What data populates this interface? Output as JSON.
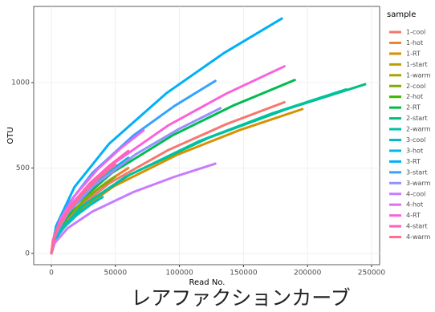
{
  "chart_data": {
    "type": "line",
    "x_label": "Read No.",
    "y_label": "OTU",
    "legend_title": "sample",
    "caption": "レアファクションカーブ",
    "xlim": [
      -13800,
      256300
    ],
    "ylim": [
      -66,
      1446
    ],
    "xticks": [
      0,
      50000,
      100000,
      150000,
      200000,
      250000
    ],
    "yticks": [
      0,
      500,
      1000
    ],
    "grid": true,
    "legend": "right",
    "series": [
      {
        "name": "1-cool",
        "color": "#F8766D",
        "x": [
          0,
          3640,
          18200,
          45500,
          91000,
          136500,
          182000
        ],
        "values": [
          0,
          103,
          250,
          412,
          604,
          756,
          885
        ]
      },
      {
        "name": "1-hot",
        "color": "#EA8331",
        "x": [
          0,
          1200,
          6000,
          15000,
          30000,
          45000,
          60000
        ],
        "values": [
          0,
          58,
          141,
          233,
          342,
          427,
          500
        ]
      },
      {
        "name": "1-RT",
        "color": "#D89000",
        "x": [
          0,
          3920,
          19600,
          49000,
          98000,
          147000,
          196000
        ],
        "values": [
          0,
          98,
          238,
          394,
          577,
          722,
          845
        ]
      },
      {
        "name": "1-start",
        "color": "#C09B00",
        "x": [
          0,
          900,
          4500,
          11250,
          22500,
          33750,
          45000
        ],
        "values": [
          0,
          44,
          107,
          177,
          260,
          325,
          380
        ]
      },
      {
        "name": "1-warm",
        "color": "#A3A500",
        "x": [
          0,
          700,
          3500,
          8750,
          17500,
          26250,
          35000
        ],
        "values": [
          0,
          37,
          90,
          149,
          219,
          273,
          320
        ]
      },
      {
        "name": "2-cool",
        "color": "#7CAE00",
        "x": [
          0,
          1000,
          5000,
          12500,
          25000,
          37500,
          50000
        ],
        "values": [
          0,
          52,
          127,
          210,
          307,
          384,
          450
        ]
      },
      {
        "name": "2-hot",
        "color": "#39B600",
        "x": [
          0,
          1100,
          5500,
          13750,
          27500,
          41250,
          55000
        ],
        "values": [
          0,
          60,
          147,
          242,
          355,
          444,
          520
        ]
      },
      {
        "name": "2-RT",
        "color": "#00BB4E",
        "x": [
          0,
          3800,
          19000,
          47500,
          95000,
          142500,
          190000
        ],
        "values": [
          0,
          118,
          286,
          473,
          693,
          867,
          1015
        ]
      },
      {
        "name": "2-start",
        "color": "#00BF7D",
        "x": [
          0,
          4900,
          24500,
          61250,
          122500,
          183750,
          245000
        ],
        "values": [
          0,
          115,
          279,
          461,
          676,
          845,
          990
        ]
      },
      {
        "name": "2-warm",
        "color": "#00C1A3",
        "x": [
          0,
          4600,
          23000,
          57500,
          115000,
          172500,
          230000
        ],
        "values": [
          0,
          111,
          271,
          447,
          656,
          820,
          960
        ]
      },
      {
        "name": "3-cool",
        "color": "#00BFC4",
        "x": [
          0,
          800,
          4000,
          10000,
          20000,
          30000,
          40000
        ],
        "values": [
          0,
          38,
          93,
          154,
          225,
          282,
          330
        ]
      },
      {
        "name": "3-hot",
        "color": "#00BAE0",
        "x": [
          0,
          1200,
          6000,
          15000,
          30000,
          45000,
          60000
        ],
        "values": [
          0,
          65,
          158,
          261,
          382,
          478,
          560
        ]
      },
      {
        "name": "3-RT",
        "color": "#00B0F6",
        "x": [
          0,
          3600,
          18000,
          45000,
          90000,
          135000,
          180000
        ],
        "values": [
          0,
          160,
          388,
          641,
          939,
          1174,
          1375
        ]
      },
      {
        "name": "3-start",
        "color": "#35A2FF",
        "x": [
          0,
          2560,
          12800,
          32000,
          64000,
          96000,
          128000
        ],
        "values": [
          0,
          117,
          285,
          471,
          690,
          863,
          1010
        ]
      },
      {
        "name": "3-warm",
        "color": "#9590FF",
        "x": [
          0,
          2640,
          13200,
          33000,
          66000,
          99000,
          132000
        ],
        "values": [
          0,
          99,
          240,
          396,
          581,
          726,
          850
        ]
      },
      {
        "name": "4-cool",
        "color": "#C77CFF",
        "x": [
          0,
          2560,
          12800,
          32000,
          64000,
          96000,
          128000
        ],
        "values": [
          0,
          61,
          148,
          245,
          359,
          448,
          525
        ]
      },
      {
        "name": "4-hot",
        "color": "#E76BF3",
        "x": [
          0,
          1440,
          7200,
          18000,
          36000,
          54000,
          72000
        ],
        "values": [
          0,
          84,
          203,
          336,
          492,
          615,
          720
        ]
      },
      {
        "name": "4-RT",
        "color": "#FA62DB",
        "x": [
          0,
          3640,
          18200,
          45500,
          91000,
          136500,
          182000
        ],
        "values": [
          0,
          127,
          309,
          510,
          748,
          935,
          1095
        ]
      },
      {
        "name": "4-start",
        "color": "#FF62BC",
        "x": [
          0,
          1200,
          6000,
          15000,
          30000,
          45000,
          60000
        ],
        "values": [
          0,
          70,
          169,
          280,
          410,
          512,
          600
        ]
      },
      {
        "name": "4-warm",
        "color": "#FF6C91",
        "x": [
          0,
          1000,
          5000,
          12500,
          25000,
          37500,
          50000
        ],
        "values": [
          0,
          60,
          147,
          242,
          355,
          444,
          520
        ]
      }
    ]
  }
}
